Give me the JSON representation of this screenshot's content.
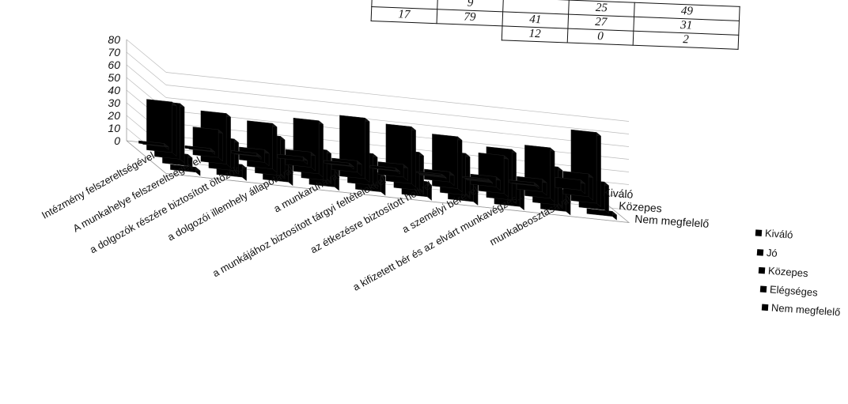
{
  "chart_data": {
    "type": "bar",
    "categories": [
      "Intézmény felszereltségével",
      "A munkahelye felszereltségével",
      "a dolgozók részére biztosított öltözők...",
      "a dolgozói illemhely állapotával",
      "a munkaruhával",
      "a munkájához biztosított tárgyi feltételekkel",
      "az étkezésre biztosított hellyel",
      "a személyi bérével",
      "a kifizetett bér és az elvárt munkavégzés...",
      "munkabeosztásával"
    ],
    "series": [
      {
        "name": "Kiváló",
        "values": [
          2,
          2,
          2,
          3,
          2,
          2,
          1,
          1,
          2,
          8
        ]
      },
      {
        "name": "Jó",
        "values": [
          40,
          22,
          10,
          12,
          9,
          10,
          8,
          8,
          10,
          18
        ]
      },
      {
        "name": "Közepes",
        "values": [
          44,
          40,
          36,
          42,
          48,
          45,
          41,
          30,
          40,
          56
        ]
      },
      {
        "name": "Elégséges",
        "values": [
          9,
          25,
          31,
          24,
          25,
          30,
          33,
          40,
          30,
          22
        ]
      },
      {
        "name": "Nem megfelelő",
        "values": [
          4,
          10,
          19,
          18,
          15,
          12,
          17,
          20,
          17,
          4
        ]
      }
    ],
    "depth_labels": [
      "Kiváló",
      "Közepes",
      "Nem megfelelő"
    ],
    "ylim": [
      0,
      80
    ],
    "yticks": [
      0,
      10,
      20,
      30,
      40,
      50,
      60,
      70,
      80
    ],
    "grid": true,
    "legend": "right"
  },
  "table": {
    "rows": [
      [
        "",
        "9",
        "",
        "25",
        "49"
      ],
      [
        "17",
        "79",
        "41",
        "27",
        "31"
      ],
      [
        "",
        "",
        "12",
        "0",
        "2"
      ]
    ]
  },
  "legend": [
    "Kiváló",
    "Jó",
    "Közepes",
    "Elégséges",
    "Nem megfelelő"
  ]
}
